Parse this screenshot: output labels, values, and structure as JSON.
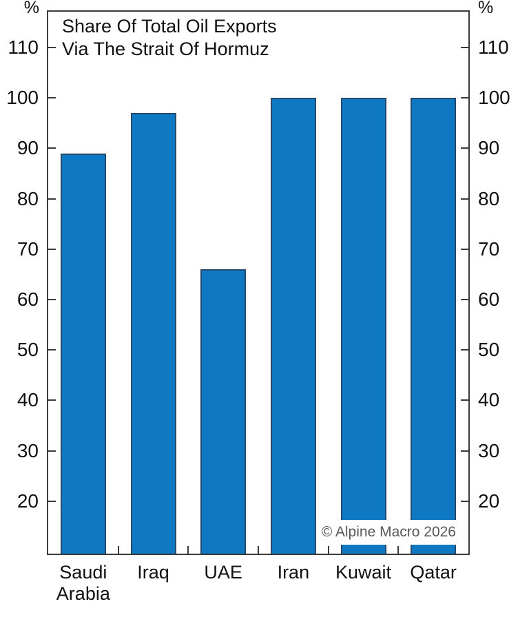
{
  "chart_data": {
    "type": "bar",
    "title": "Share Of Total Oil Exports Via The Strait Of Hormuz",
    "title_lines": [
      "Share Of Total Oil Exports",
      "Via The Strait Of Hormuz"
    ],
    "unit_label": "%",
    "categories": [
      "Saudi Arabia",
      "Iraq",
      "UAE",
      "Iran",
      "Kuwait",
      "Qatar"
    ],
    "category_lines": [
      [
        "Saudi",
        "Arabia"
      ],
      [
        "Iraq"
      ],
      [
        "UAE"
      ],
      [
        "Iran"
      ],
      [
        "Kuwait"
      ],
      [
        "Qatar"
      ]
    ],
    "values": [
      89,
      97,
      66,
      100,
      100,
      100
    ],
    "yticks": [
      20,
      30,
      40,
      50,
      60,
      70,
      80,
      90,
      100,
      110
    ],
    "ylim": [
      9.6,
      117.1
    ],
    "grid": false,
    "legend_position": "none",
    "bar_fill_color": "#0e78c3",
    "bar_edge_color": "#24496b",
    "axis_color": "#3a3a3a",
    "text_color": "#111111",
    "watermark": "© Alpine Macro 2026",
    "watermark_color": "#595959"
  }
}
